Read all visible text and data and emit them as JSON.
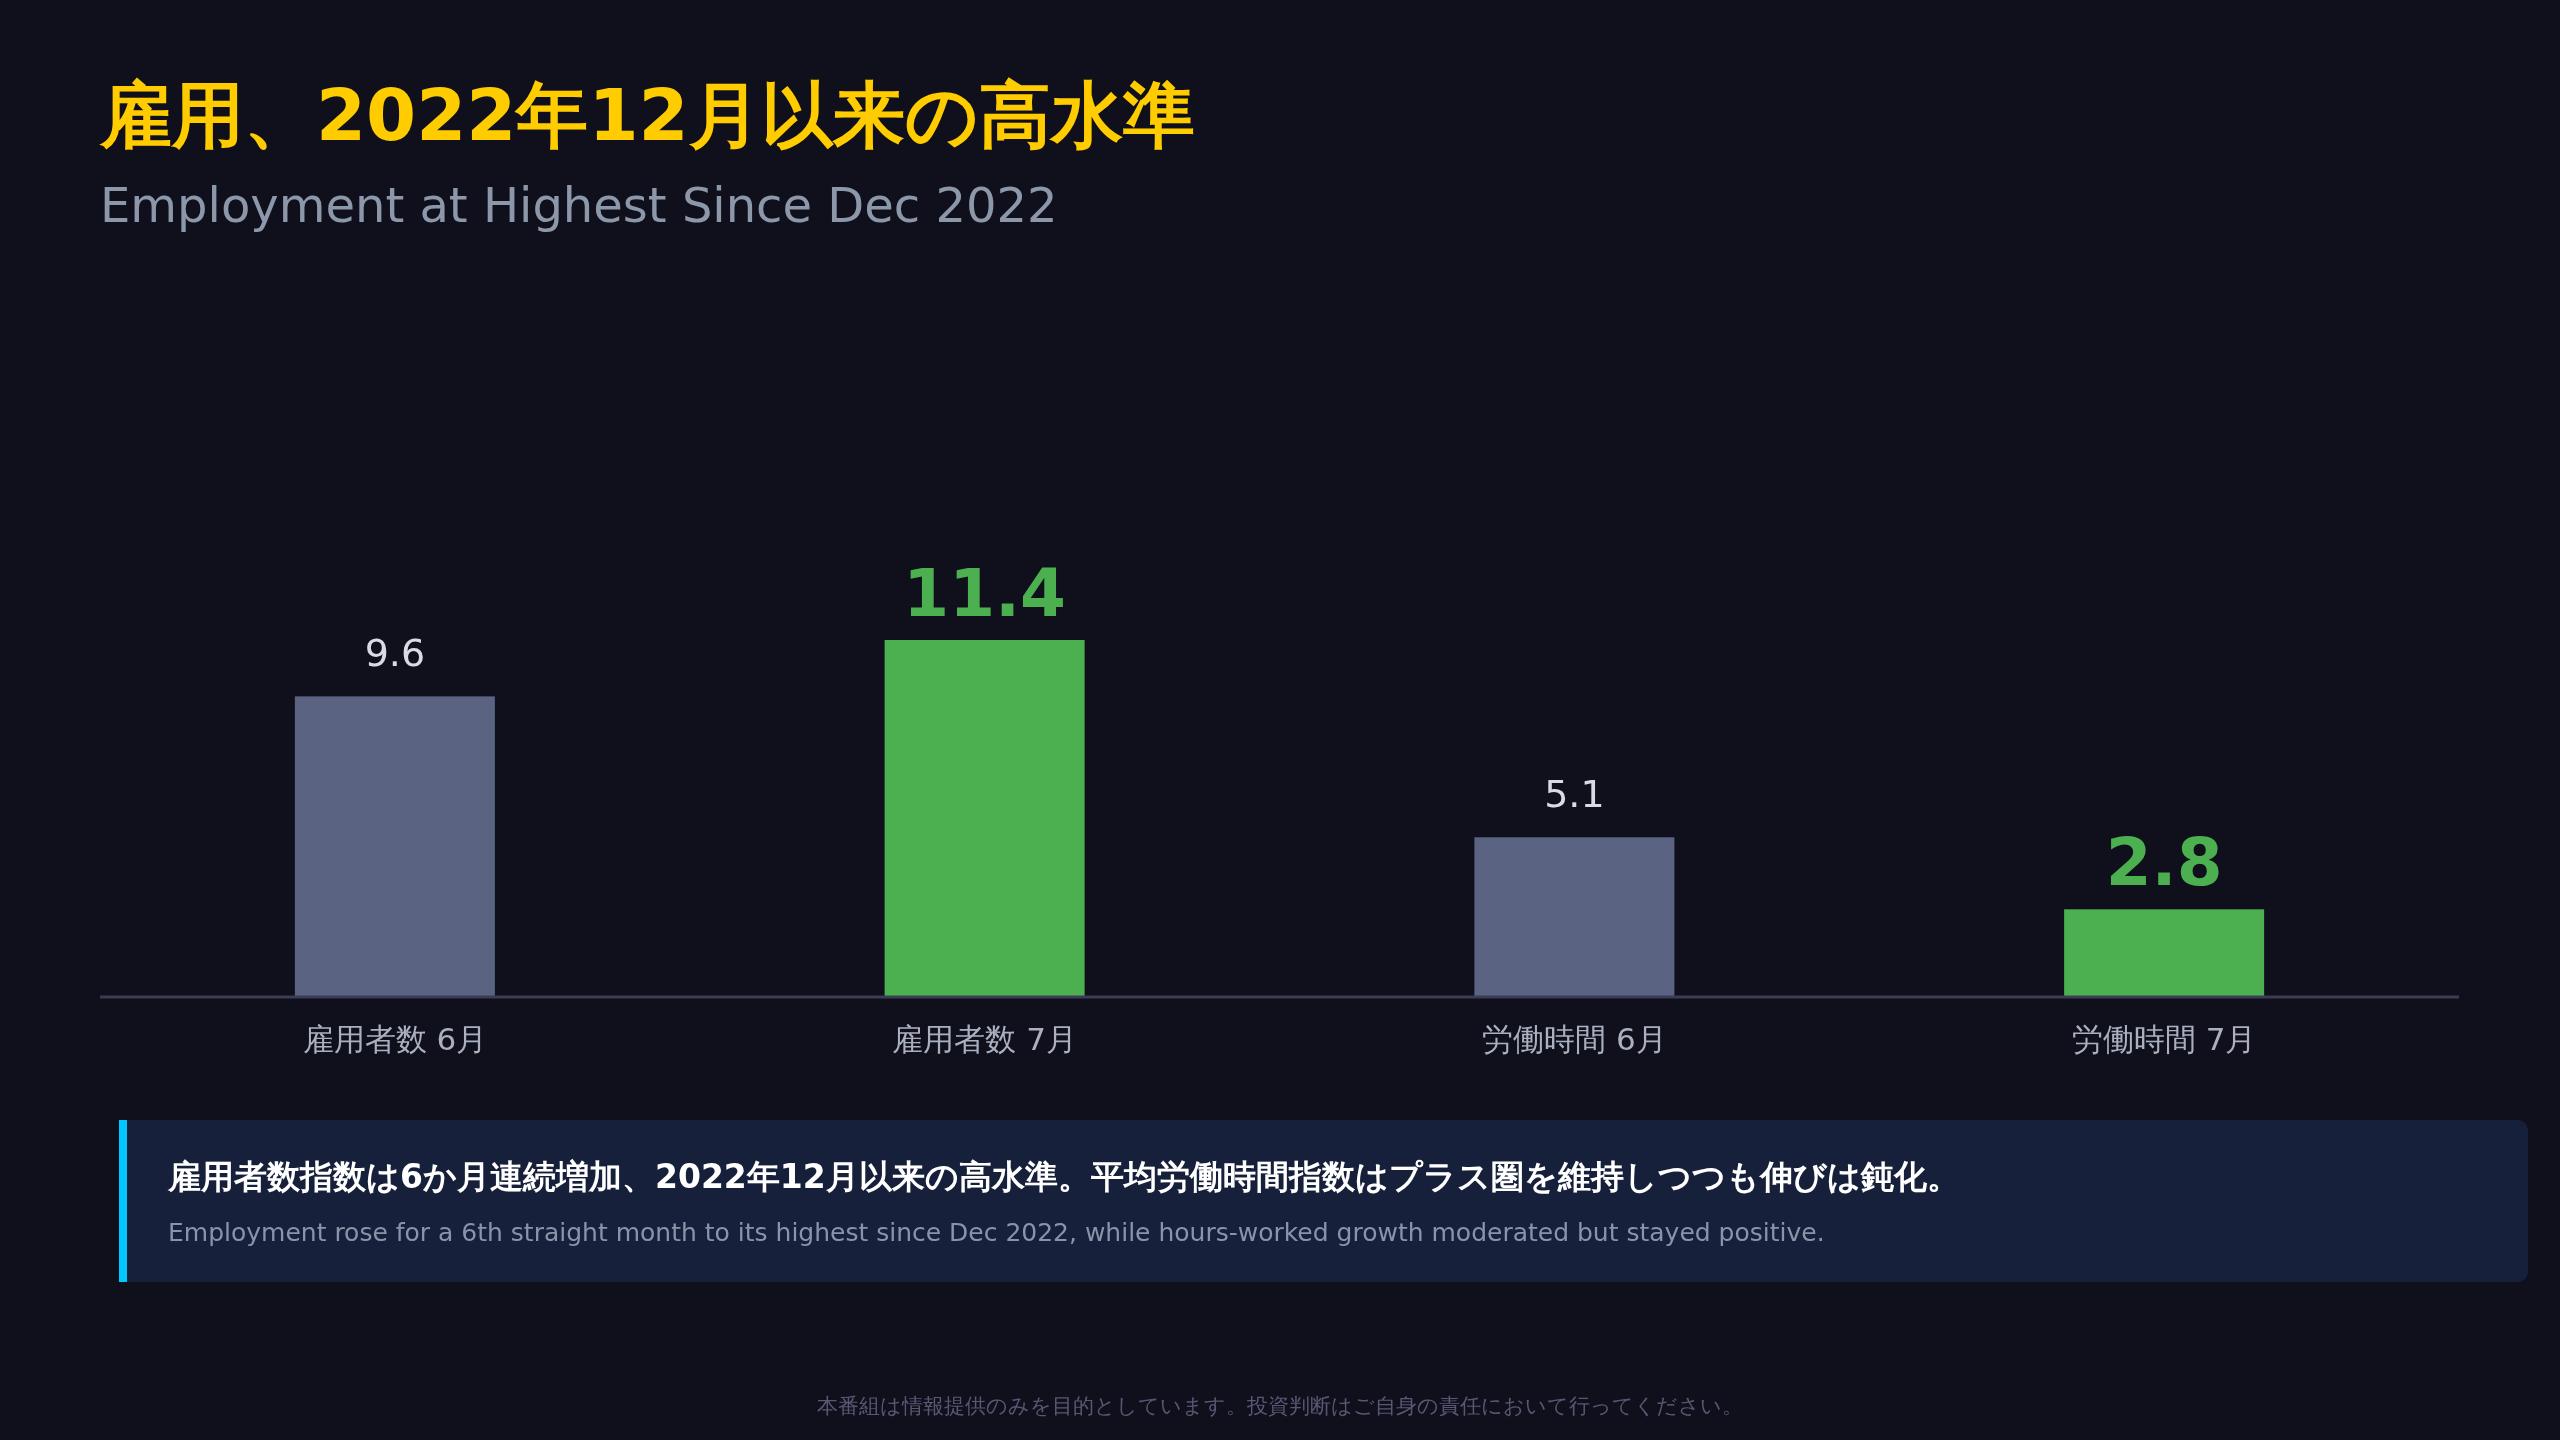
{
  "chart_data": {
    "type": "bar",
    "title": "雇用、2022年12月以来の高水準",
    "subtitle": "Employment at Highest Since Dec 2022",
    "categories": [
      "雇用者数 6月",
      "雇用者数 7月",
      "労働時間 6月",
      "労働時間 7月"
    ],
    "values": [
      9.6,
      11.4,
      5.1,
      2.8
    ],
    "colors": [
      "#5a6482",
      "#4caf50",
      "#5a6482",
      "#4caf50"
    ],
    "data_labels": true,
    "annotations": [
      "雇用者数指数は6か月連続増加、2022年12月以来の高水準。平均労働時間指数はプラス圏を維持しつつも伸びは鈍化。",
      "Employment rose for a 6th straight month to its highest since Dec 2022, while hours-worked growth moderated but stayed positive.",
      "本番組は情報提供のみを目的としています。投資判断はご自身の責任において行ってください。"
    ]
  }
}
